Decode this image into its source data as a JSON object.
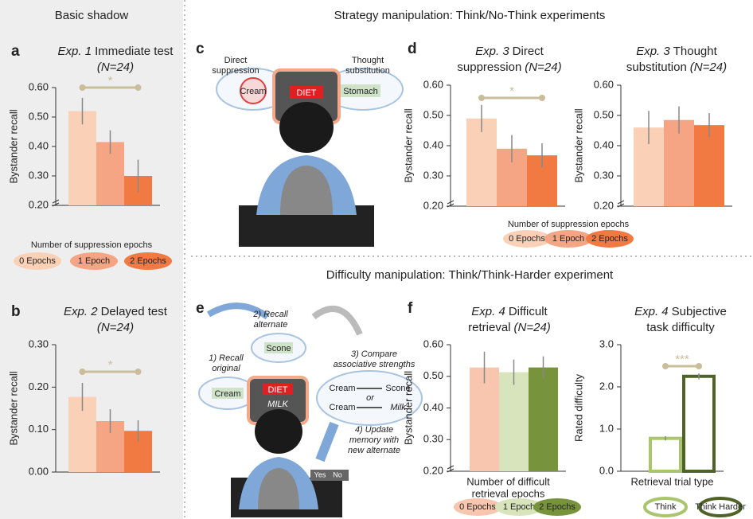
{
  "sections": [
    "Basic shadow",
    "Strategy manipulation: Think/No-Think experiments",
    "Difficulty manipulation: Think/Think-Harder experiment"
  ],
  "panel_letters": [
    "a",
    "b",
    "c",
    "d",
    "e",
    "f"
  ],
  "legends": [
    {
      "title": "Number of suppression epochs"
    },
    {
      "title": "Number of suppression epochs"
    }
  ],
  "diagram_c": {
    "texts": [
      "Direct",
      "suppression",
      "Thought",
      "substitution",
      "Cream",
      "DIET",
      "Stomach"
    ]
  },
  "diagram_e": {
    "texts": [
      "2) Recall",
      "alternate",
      "1) Recall",
      "original",
      "Scone",
      "3) Compare",
      "associative strengths",
      "Cream",
      "DIET",
      "MILK",
      "Cream",
      "Scone",
      "or",
      "Cream",
      "Milk",
      "4) Update",
      "memory with",
      "new alternate",
      "Yes",
      "No"
    ]
  },
  "chart_data": [
    {
      "type": "bar",
      "exp": "Exp. 1",
      "title_lines": [
        "Immediate test"
      ],
      "n": "(N=24)",
      "ylabel": "Bystander recall",
      "categories": [
        "0 Epochs",
        "1 Epoch",
        "2 Epochs"
      ],
      "values": [
        0.52,
        0.415,
        0.3
      ],
      "errors": [
        0.045,
        0.04,
        0.055
      ],
      "colors": [
        "#fad0b6",
        "#f5a583",
        "#f07a42"
      ],
      "annotation": "*",
      "ylim": [
        0.2,
        0.6
      ],
      "yticks": [
        {
          "value": 0.2,
          "label": "0.20"
        },
        {
          "value": 0.3,
          "label": "0.30"
        },
        {
          "value": 0.4,
          "label": "0.40"
        },
        {
          "value": 0.5,
          "label": "0.50"
        },
        {
          "value": 0.6,
          "label": "0.60"
        }
      ]
    },
    {
      "type": "bar",
      "exp": "Exp. 2",
      "title_lines": [
        "Delayed test"
      ],
      "n": "(N=24)",
      "ylabel": "Bystander recall",
      "values": [
        0.177,
        0.12,
        0.097
      ],
      "errors": [
        0.033,
        0.028,
        0.025
      ],
      "colors": [
        "#fad0b6",
        "#f5a583",
        "#f07a42"
      ],
      "annotation": "*",
      "ylim": [
        0,
        0.3
      ],
      "yticks": [
        {
          "value": 0,
          "label": "0.00"
        },
        {
          "value": 0.1,
          "label": "0.10"
        },
        {
          "value": 0.2,
          "label": "0.20"
        },
        {
          "value": 0.3,
          "label": "0.30"
        }
      ]
    },
    {
      "type": "bar",
      "exp": "Exp. 3",
      "title_lines": [
        "Direct",
        "suppression"
      ],
      "n": "(N=24)",
      "ylabel": "Bystander recall",
      "categories": [
        "0 Epochs",
        "1 Epoch",
        "2 Epochs"
      ],
      "values": [
        0.49,
        0.39,
        0.368
      ],
      "errors": [
        0.045,
        0.045,
        0.04
      ],
      "colors": [
        "#fad0b6",
        "#f5a583",
        "#f07a42"
      ],
      "annotation": "*",
      "ylim": [
        0.2,
        0.6
      ],
      "yticks": [
        {
          "value": 0.2,
          "label": "0.20"
        },
        {
          "value": 0.3,
          "label": "0.30"
        },
        {
          "value": 0.4,
          "label": "0.40"
        },
        {
          "value": 0.5,
          "label": "0.50"
        },
        {
          "value": 0.6,
          "label": "0.60"
        }
      ]
    },
    {
      "type": "bar",
      "exp": "Exp. 3",
      "title_lines": [
        "Thought",
        "substitution"
      ],
      "n": "(N=24)",
      "ylabel": "Bystander recall",
      "values": [
        0.46,
        0.485,
        0.468
      ],
      "errors": [
        0.055,
        0.045,
        0.04
      ],
      "colors": [
        "#fad0b6",
        "#f5a583",
        "#f07a42"
      ],
      "ylim": [
        0.2,
        0.6
      ],
      "yticks": [
        {
          "value": 0.2,
          "label": "0.20"
        },
        {
          "value": 0.3,
          "label": "0.30"
        },
        {
          "value": 0.4,
          "label": "0.40"
        },
        {
          "value": 0.5,
          "label": "0.50"
        },
        {
          "value": 0.6,
          "label": "0.60"
        }
      ]
    },
    {
      "type": "bar",
      "exp": "Exp. 4",
      "title_lines": [
        "Difficult",
        "retrieval"
      ],
      "n": "(N=24)",
      "ylabel": "Bystander recall",
      "xlabel": [
        "Number of difficult",
        "retrieval epochs"
      ],
      "categories": [
        "0 Epochs",
        "1 Epoch",
        "2 Epochs"
      ],
      "values": [
        0.528,
        0.513,
        0.528
      ],
      "errors": [
        0.05,
        0.04,
        0.035
      ],
      "colors": [
        "#f8c6ae",
        "#d8e4bc",
        "#77933c"
      ],
      "ylim": [
        0.2,
        0.6
      ],
      "yticks": [
        {
          "value": 0.2,
          "label": "0.20"
        },
        {
          "value": 0.3,
          "label": "0.30"
        },
        {
          "value": 0.4,
          "label": "0.40"
        },
        {
          "value": 0.5,
          "label": "0.50"
        },
        {
          "value": 0.6,
          "label": "0.60"
        }
      ]
    },
    {
      "type": "bar",
      "exp": "Exp. 4",
      "title_lines": [
        "Subjective",
        "task difficulty"
      ],
      "ylabel": "Rated difficulty",
      "xlabel": [
        "Retrieval trial type"
      ],
      "bar_style": "outline",
      "categories": [
        "Think",
        "Think Harder"
      ],
      "values": [
        0.78,
        2.25
      ],
      "errors": [
        0.05,
        0.07
      ],
      "colors": [
        "#a9c66f",
        "#4f6228"
      ],
      "annotation": "***",
      "ylim": [
        0,
        3
      ],
      "yticks": [
        {
          "value": 0,
          "label": "0.0"
        },
        {
          "value": 1,
          "label": "1.0"
        },
        {
          "value": 2,
          "label": "2.0"
        },
        {
          "value": 3,
          "label": "3.0"
        }
      ]
    }
  ]
}
